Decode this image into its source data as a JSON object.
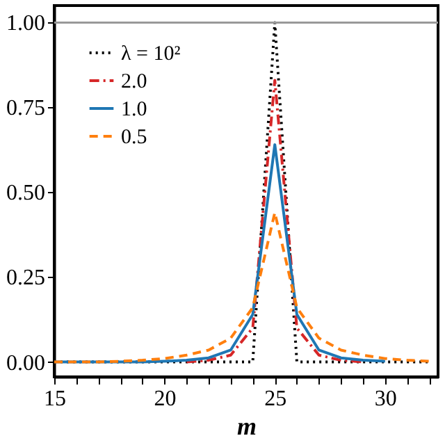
{
  "chart_data": {
    "type": "line",
    "xlabel": "m",
    "x": [
      15,
      16,
      17,
      18,
      19,
      20,
      21,
      22,
      23,
      24,
      25,
      26,
      27,
      28,
      29,
      30,
      31,
      32
    ],
    "series": [
      {
        "name": "λ = 10²",
        "color": "#000000",
        "line_style": "dotted",
        "values": [
          0,
          0,
          0,
          0,
          0,
          0,
          0,
          0,
          0,
          0,
          1.0,
          0,
          0,
          0,
          0,
          0,
          0,
          0
        ]
      },
      {
        "name": "2.0",
        "color": "#d62728",
        "line_style": "dashdot",
        "values": [
          null,
          null,
          null,
          null,
          null,
          null,
          0,
          0.005,
          0.02,
          0.1,
          0.83,
          0.1,
          0.02,
          0.005,
          0,
          null,
          null,
          null
        ]
      },
      {
        "name": "1.0",
        "color": "#1f77b4",
        "line_style": "solid",
        "values": [
          0,
          0,
          0,
          0,
          0,
          0.002,
          0.005,
          0.012,
          0.035,
          0.14,
          0.64,
          0.14,
          0.035,
          0.012,
          0.005,
          0.002,
          null,
          null
        ]
      },
      {
        "name": "0.5",
        "color": "#ff7f0e",
        "line_style": "dashed",
        "values": [
          0,
          0,
          0,
          0.002,
          0.005,
          0.01,
          0.02,
          0.035,
          0.07,
          0.16,
          0.44,
          0.16,
          0.07,
          0.035,
          0.02,
          0.01,
          0.005,
          0.002
        ]
      }
    ],
    "xlim": [
      15,
      32.4
    ],
    "xticks": [
      15,
      {
        "value": 16,
        "label": null
      },
      {
        "value": 17,
        "label": null
      },
      {
        "value": 18,
        "label": null
      },
      {
        "value": 19,
        "label": null
      },
      20,
      {
        "value": 21,
        "label": null
      },
      {
        "value": 22,
        "label": null
      },
      {
        "value": 23,
        "label": null
      },
      {
        "value": 24,
        "label": null
      },
      25,
      {
        "value": 26,
        "label": null
      },
      {
        "value": 27,
        "label": null
      },
      {
        "value": 28,
        "label": null
      },
      {
        "value": 29,
        "label": null
      },
      30,
      {
        "value": 31,
        "label": null
      },
      {
        "value": 32,
        "label": null
      }
    ],
    "ylim": [
      -0.044,
      1.05
    ],
    "yticks": [
      {
        "value": 0,
        "label": "0.00"
      },
      {
        "value": 0.25,
        "label": "0.25"
      },
      {
        "value": 0.5,
        "label": "0.50"
      },
      {
        "value": 0.75,
        "label": "0.75"
      },
      {
        "value": 1.0,
        "label": "1.00"
      }
    ],
    "ref_lines": [
      {
        "axis": "y",
        "value": 1.0,
        "color": "#999999",
        "line_style": "solid"
      }
    ],
    "grid": false,
    "legend": "top left"
  }
}
